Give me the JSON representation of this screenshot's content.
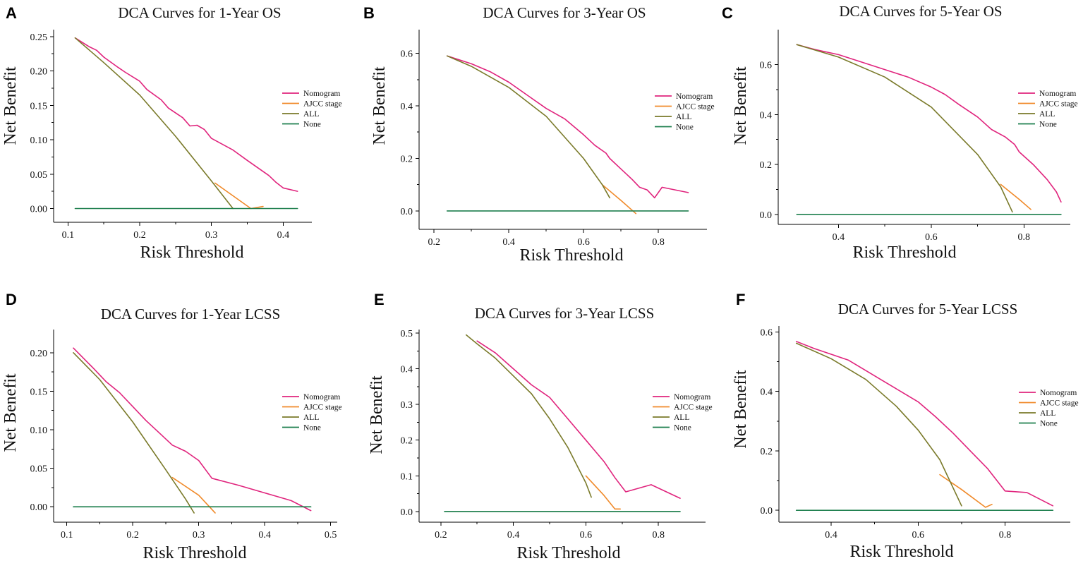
{
  "colors": {
    "Nomogram": "#e0247d",
    "AJCC stage": "#f08a2a",
    "ALL": "#7a7a2a",
    "None": "#1e7f4e"
  },
  "chart_data": [
    {
      "id": "A",
      "type": "line",
      "title": "DCA Curves for 1-Year OS",
      "xlabel": "Risk Threshold",
      "ylabel": "Net Benefit",
      "xlim": [
        0.08,
        0.44
      ],
      "ylim": [
        -0.02,
        0.26
      ],
      "xticks": [
        0.1,
        0.2,
        0.3,
        0.4
      ],
      "xtick_labels": [
        "0.1",
        "0.2",
        "0.3",
        "0.4"
      ],
      "yticks": [
        0.0,
        0.05,
        0.1,
        0.15,
        0.2,
        0.25
      ],
      "ytick_labels": [
        "0.00",
        "0.05",
        "0.10",
        "0.15",
        "0.20",
        "0.25"
      ],
      "legend": [
        "Nomogram",
        "AJCC stage",
        "ALL",
        "None"
      ],
      "series": [
        {
          "name": "Nomogram",
          "x": [
            0.11,
            0.13,
            0.14,
            0.15,
            0.17,
            0.18,
            0.2,
            0.21,
            0.23,
            0.24,
            0.26,
            0.27,
            0.28,
            0.29,
            0.3,
            0.33,
            0.35,
            0.38,
            0.39,
            0.4,
            0.42
          ],
          "y": [
            0.248,
            0.235,
            0.23,
            0.22,
            0.205,
            0.198,
            0.185,
            0.173,
            0.158,
            0.146,
            0.132,
            0.12,
            0.121,
            0.115,
            0.102,
            0.085,
            0.07,
            0.048,
            0.038,
            0.03,
            0.025
          ]
        },
        {
          "name": "AJCC stage",
          "x": [
            0.305,
            0.355,
            0.372
          ],
          "y": [
            0.037,
            0.0,
            0.003
          ]
        },
        {
          "name": "ALL",
          "x": [
            0.11,
            0.15,
            0.2,
            0.25,
            0.3,
            0.33
          ],
          "y": [
            0.248,
            0.212,
            0.165,
            0.105,
            0.04,
            0.0
          ]
        },
        {
          "name": "None",
          "x": [
            0.11,
            0.42
          ],
          "y": [
            0.0,
            0.0
          ]
        }
      ]
    },
    {
      "id": "B",
      "type": "line",
      "title": "DCA Curves for 3-Year OS",
      "xlabel": "Risk Threshold",
      "ylabel": "Net Benefit",
      "xlim": [
        0.16,
        0.93
      ],
      "ylim": [
        -0.07,
        0.69
      ],
      "xticks": [
        0.2,
        0.4,
        0.6,
        0.8
      ],
      "xtick_labels": [
        "0.2",
        "0.4",
        "0.6",
        "0.8"
      ],
      "yticks": [
        0.0,
        0.2,
        0.4,
        0.6
      ],
      "ytick_labels": [
        "0.0",
        "0.2",
        "0.4",
        "0.6"
      ],
      "legend": [
        "Nomogram",
        "AJCC stage",
        "ALL",
        "None"
      ],
      "series": [
        {
          "name": "Nomogram",
          "x": [
            0.235,
            0.3,
            0.35,
            0.4,
            0.45,
            0.5,
            0.55,
            0.6,
            0.63,
            0.66,
            0.67,
            0.7,
            0.73,
            0.75,
            0.77,
            0.79,
            0.81,
            0.88
          ],
          "y": [
            0.59,
            0.56,
            0.53,
            0.49,
            0.44,
            0.39,
            0.35,
            0.29,
            0.25,
            0.22,
            0.2,
            0.16,
            0.12,
            0.09,
            0.08,
            0.05,
            0.09,
            0.07
          ]
        },
        {
          "name": "AJCC stage",
          "x": [
            0.65,
            0.7,
            0.74
          ],
          "y": [
            0.1,
            0.04,
            -0.01
          ]
        },
        {
          "name": "ALL",
          "x": [
            0.235,
            0.3,
            0.4,
            0.5,
            0.6,
            0.65,
            0.67
          ],
          "y": [
            0.59,
            0.55,
            0.47,
            0.36,
            0.2,
            0.1,
            0.05
          ]
        },
        {
          "name": "None",
          "x": [
            0.235,
            0.88
          ],
          "y": [
            0.0,
            0.0
          ]
        }
      ]
    },
    {
      "id": "C",
      "type": "line",
      "title": "DCA Curves for 5-Year OS",
      "xlabel": "Risk Threshold",
      "ylabel": "Net Benefit",
      "xlim": [
        0.27,
        0.9
      ],
      "ylim": [
        -0.04,
        0.74
      ],
      "xticks": [
        0.4,
        0.6,
        0.8
      ],
      "xtick_labels": [
        "0.4",
        "0.6",
        "0.8"
      ],
      "yticks": [
        0.0,
        0.2,
        0.4,
        0.6
      ],
      "ytick_labels": [
        "0.0",
        "0.2",
        "0.4",
        "0.6"
      ],
      "legend": [
        "Nomogram",
        "AJCC stage",
        "ALL",
        "None"
      ],
      "series": [
        {
          "name": "Nomogram",
          "x": [
            0.31,
            0.35,
            0.4,
            0.45,
            0.5,
            0.55,
            0.6,
            0.63,
            0.66,
            0.7,
            0.73,
            0.76,
            0.78,
            0.79,
            0.82,
            0.85,
            0.87,
            0.88
          ],
          "y": [
            0.68,
            0.66,
            0.64,
            0.61,
            0.58,
            0.55,
            0.51,
            0.48,
            0.44,
            0.39,
            0.34,
            0.31,
            0.28,
            0.25,
            0.2,
            0.14,
            0.09,
            0.05
          ]
        },
        {
          "name": "AJCC stage",
          "x": [
            0.75,
            0.79,
            0.815
          ],
          "y": [
            0.12,
            0.06,
            0.02
          ]
        },
        {
          "name": "ALL",
          "x": [
            0.31,
            0.4,
            0.5,
            0.6,
            0.7,
            0.75,
            0.775
          ],
          "y": [
            0.68,
            0.63,
            0.55,
            0.43,
            0.24,
            0.11,
            0.01
          ]
        },
        {
          "name": "None",
          "x": [
            0.31,
            0.88
          ],
          "y": [
            0.0,
            0.0
          ]
        }
      ]
    },
    {
      "id": "D",
      "type": "line",
      "title": "DCA Curves for 1-Year LCSS",
      "xlabel": "Risk Threshold",
      "ylabel": "Net Benefit",
      "xlim": [
        0.08,
        0.51
      ],
      "ylim": [
        -0.02,
        0.23
      ],
      "xticks": [
        0.1,
        0.2,
        0.3,
        0.4,
        0.5
      ],
      "xtick_labels": [
        "0.1",
        "0.2",
        "0.3",
        "0.4",
        "0.5"
      ],
      "yticks": [
        0.0,
        0.05,
        0.1,
        0.15,
        0.2
      ],
      "ytick_labels": [
        "0.00",
        "0.05",
        "0.10",
        "0.15",
        "0.20"
      ],
      "legend": [
        "Nomogram",
        "AJCC stage",
        "ALL",
        "None"
      ],
      "series": [
        {
          "name": "Nomogram",
          "x": [
            0.11,
            0.14,
            0.16,
            0.18,
            0.2,
            0.22,
            0.24,
            0.26,
            0.28,
            0.3,
            0.32,
            0.36,
            0.4,
            0.44,
            0.47
          ],
          "y": [
            0.206,
            0.18,
            0.162,
            0.148,
            0.13,
            0.112,
            0.096,
            0.08,
            0.072,
            0.06,
            0.037,
            0.028,
            0.018,
            0.008,
            -0.005
          ]
        },
        {
          "name": "AJCC stage",
          "x": [
            0.26,
            0.3,
            0.325
          ],
          "y": [
            0.038,
            0.015,
            -0.008
          ]
        },
        {
          "name": "ALL",
          "x": [
            0.11,
            0.15,
            0.2,
            0.25,
            0.28,
            0.293
          ],
          "y": [
            0.2,
            0.165,
            0.11,
            0.048,
            0.01,
            -0.008
          ]
        },
        {
          "name": "None",
          "x": [
            0.11,
            0.47
          ],
          "y": [
            0.0,
            0.0
          ]
        }
      ]
    },
    {
      "id": "E",
      "type": "line",
      "title": "DCA Curves for 3-Year LCSS",
      "xlabel": "Risk Threshold",
      "ylabel": "Net Benefit",
      "xlim": [
        0.14,
        0.93
      ],
      "ylim": [
        -0.03,
        0.51
      ],
      "xticks": [
        0.2,
        0.4,
        0.6,
        0.8
      ],
      "xtick_labels": [
        "0.2",
        "0.4",
        "0.6",
        "0.8"
      ],
      "yticks": [
        0.0,
        0.1,
        0.2,
        0.3,
        0.4,
        0.5
      ],
      "ytick_labels": [
        "0.0",
        "0.1",
        "0.2",
        "0.3",
        "0.4",
        "0.5"
      ],
      "legend": [
        "Nomogram",
        "AJCC stage",
        "ALL",
        "None"
      ],
      "series": [
        {
          "name": "Nomogram",
          "x": [
            0.3,
            0.35,
            0.4,
            0.45,
            0.5,
            0.55,
            0.6,
            0.65,
            0.68,
            0.71,
            0.78,
            0.86
          ],
          "y": [
            0.478,
            0.445,
            0.4,
            0.355,
            0.32,
            0.26,
            0.2,
            0.14,
            0.095,
            0.055,
            0.075,
            0.037
          ]
        },
        {
          "name": "AJCC stage",
          "x": [
            0.6,
            0.65,
            0.68,
            0.695
          ],
          "y": [
            0.1,
            0.045,
            0.007,
            0.007
          ]
        },
        {
          "name": "ALL",
          "x": [
            0.27,
            0.3,
            0.35,
            0.4,
            0.45,
            0.5,
            0.55,
            0.6,
            0.615
          ],
          "y": [
            0.495,
            0.47,
            0.43,
            0.38,
            0.33,
            0.26,
            0.18,
            0.08,
            0.04
          ]
        },
        {
          "name": "None",
          "x": [
            0.21,
            0.86
          ],
          "y": [
            0.0,
            0.0
          ]
        }
      ]
    },
    {
      "id": "F",
      "type": "line",
      "title": "DCA Curves for 5-Year LCSS",
      "xlabel": "Risk Threshold",
      "ylabel": "Net Benefit",
      "xlim": [
        0.28,
        0.95
      ],
      "ylim": [
        -0.04,
        0.62
      ],
      "xticks": [
        0.4,
        0.6,
        0.8
      ],
      "xtick_labels": [
        "0.4",
        "0.6",
        "0.8"
      ],
      "yticks": [
        0.0,
        0.2,
        0.4,
        0.6
      ],
      "ytick_labels": [
        "0.0",
        "0.2",
        "0.4",
        "0.6"
      ],
      "legend": [
        "Nomogram",
        "AJCC stage",
        "ALL",
        "None"
      ],
      "series": [
        {
          "name": "Nomogram",
          "x": [
            0.32,
            0.36,
            0.4,
            0.44,
            0.48,
            0.52,
            0.56,
            0.6,
            0.64,
            0.68,
            0.72,
            0.76,
            0.8,
            0.85,
            0.91
          ],
          "y": [
            0.568,
            0.545,
            0.525,
            0.505,
            0.47,
            0.435,
            0.4,
            0.365,
            0.315,
            0.26,
            0.2,
            0.14,
            0.065,
            0.06,
            0.015
          ]
        },
        {
          "name": "AJCC stage",
          "x": [
            0.65,
            0.7,
            0.755,
            0.77
          ],
          "y": [
            0.12,
            0.07,
            0.01,
            0.02
          ]
        },
        {
          "name": "ALL",
          "x": [
            0.32,
            0.4,
            0.48,
            0.55,
            0.6,
            0.65,
            0.7
          ],
          "y": [
            0.562,
            0.51,
            0.44,
            0.35,
            0.27,
            0.17,
            0.015
          ]
        },
        {
          "name": "None",
          "x": [
            0.32,
            0.91
          ],
          "y": [
            0.0,
            0.0
          ]
        }
      ]
    }
  ]
}
